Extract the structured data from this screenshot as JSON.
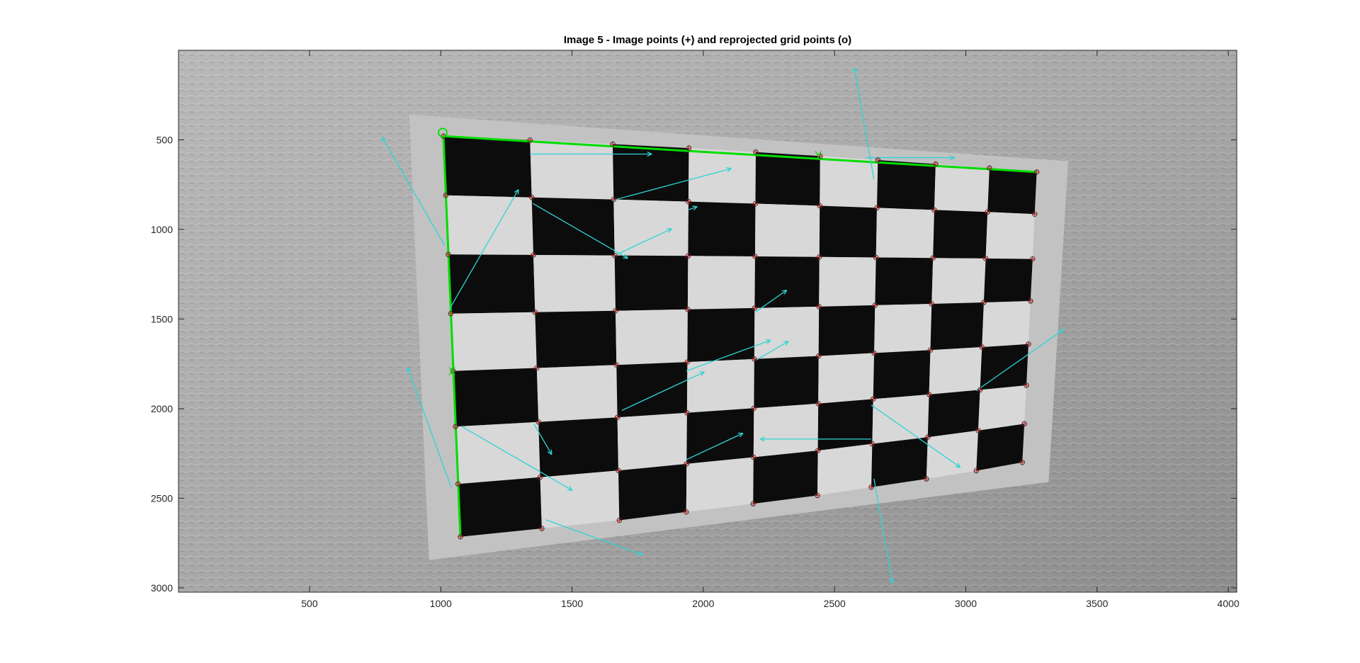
{
  "chart_data": {
    "type": "scatter",
    "title": "Image 5 - Image points (+) and reprojected grid points (o)",
    "xlim": [
      1,
      4032
    ],
    "ylim": [
      1,
      3024
    ],
    "y_reversed": true,
    "xticks": [
      500,
      1000,
      1500,
      2000,
      2500,
      3000,
      3500,
      4000
    ],
    "yticks": [
      500,
      1000,
      1500,
      2000,
      2500,
      3000
    ],
    "axis_labels": {
      "origin": "O",
      "x_axis": "X",
      "y_axis": "Y"
    },
    "grid": false,
    "board": {
      "rows": 8,
      "cols": 9
    },
    "corners": {
      "top_left": [
        1010,
        480
      ],
      "top_right": [
        3270,
        680
      ],
      "bottom_left": [
        1075,
        2715
      ],
      "bottom_right": [
        3215,
        2300
      ]
    },
    "col_x_top": [
      1010,
      1340,
      1655,
      1945,
      2200,
      2445,
      2665,
      2885,
      3090,
      3270
    ],
    "col_x_bottom": [
      1075,
      1385,
      1680,
      1935,
      2190,
      2435,
      2640,
      2850,
      3040,
      3215
    ],
    "row_y_left": [
      480,
      810,
      1140,
      1470,
      1790,
      2100,
      2420,
      2715
    ],
    "row_y_right": [
      680,
      915,
      1165,
      1400,
      1640,
      1870,
      2085,
      2300
    ],
    "error_arrows": [
      [
        1340,
        580,
        1030,
        0
      ],
      [
        1650,
        840,
        1050,
        -15
      ],
      [
        1350,
        855,
        930,
        30
      ],
      [
        1945,
        890,
        75,
        -20
      ],
      [
        1670,
        1140,
        515,
        -25
      ],
      [
        2200,
        1460,
        320,
        -35
      ],
      [
        2200,
        1730,
        320,
        -30
      ],
      [
        1935,
        1790,
        760,
        -20
      ],
      [
        1355,
        2085,
        300,
        60
      ],
      [
        1690,
        2010,
        770,
        -25
      ],
      [
        1935,
        2285,
        530,
        -25
      ],
      [
        2640,
        1980,
        920,
        35
      ],
      [
        2640,
        2170,
        940,
        180
      ],
      [
        3040,
        1900,
        900,
        -35
      ],
      [
        1015,
        1090,
        1060,
        -120
      ],
      [
        1035,
        1440,
        1160,
        -60
      ],
      [
        1040,
        2440,
        1080,
        -110
      ],
      [
        1080,
        2100,
        1080,
        30
      ],
      [
        2620,
        600,
        750,
        0
      ],
      [
        2650,
        720,
        960,
        -100
      ],
      [
        1400,
        2620,
        870,
        20
      ],
      [
        2650,
        2390,
        900,
        80
      ]
    ]
  },
  "colors": {
    "grid_lines": "#00dd00",
    "error_arrows": "#2fd4d4",
    "image_points": "#cc2222",
    "reprojected": "#333333",
    "board_dark": "#0c0c0c",
    "board_light": "#d8d8d8",
    "wall": "#a6a6a6"
  }
}
